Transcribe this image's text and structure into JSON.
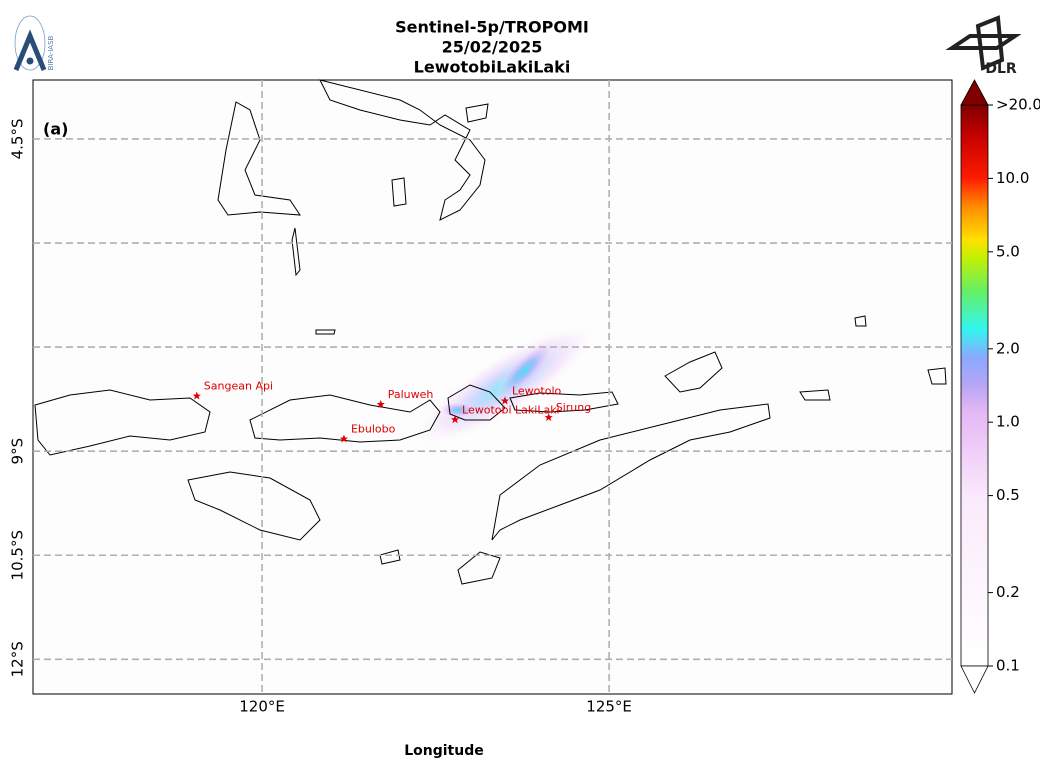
{
  "header": {
    "title_lines": [
      "Sentinel-5p/TROPOMI",
      "25/02/2025",
      "LewotobiLakiLaki"
    ],
    "left_logo": "BIRA-IASB",
    "right_logo": "DLR"
  },
  "map": {
    "panel_label": "(a)",
    "x_label": "Longitude",
    "lon_lim": [
      116.7,
      129.94
    ],
    "lat_lim": [
      -3.65,
      -12.5
    ],
    "lon_ticks": [
      {
        "value": 120,
        "label": "120°E"
      },
      {
        "value": 125,
        "label": "125°E"
      }
    ],
    "lat_ticks": [
      {
        "value": -4.5,
        "label": "4.5°S"
      },
      {
        "value": -6,
        "label": null
      },
      {
        "value": -7.5,
        "label": null
      },
      {
        "value": -9,
        "label": "9°S"
      },
      {
        "value": -10.5,
        "label": "10.5°S"
      },
      {
        "value": -12,
        "label": "12°S"
      }
    ],
    "grid": true,
    "volcanoes": [
      {
        "name": "Sangean Api",
        "lon": 119.06,
        "lat": -8.2
      },
      {
        "name": "Paluweh",
        "lon": 121.71,
        "lat": -8.32
      },
      {
        "name": "Ebulobo",
        "lon": 121.18,
        "lat": -8.82
      },
      {
        "name": "Lewotolo",
        "lon": 123.5,
        "lat": -8.27
      },
      {
        "name": "Lewotobi LakiLaki",
        "lon": 122.78,
        "lat": -8.54
      },
      {
        "name": "Sirung",
        "lon": 124.13,
        "lat": -8.51
      }
    ],
    "marker_color": "#e00000"
  },
  "colorbar": {
    "scale": "log",
    "lim": [
      0.1,
      20
    ],
    "ticks": [
      {
        "value": 20,
        "label": ">20.0"
      },
      {
        "value": 10,
        "label": "10.0"
      },
      {
        "value": 5,
        "label": "5.0"
      },
      {
        "value": 2,
        "label": "2.0"
      },
      {
        "value": 1,
        "label": "1.0"
      },
      {
        "value": 0.5,
        "label": "0.5"
      },
      {
        "value": 0.2,
        "label": "0.2"
      },
      {
        "value": 0.1,
        "label": "0.1"
      }
    ]
  }
}
